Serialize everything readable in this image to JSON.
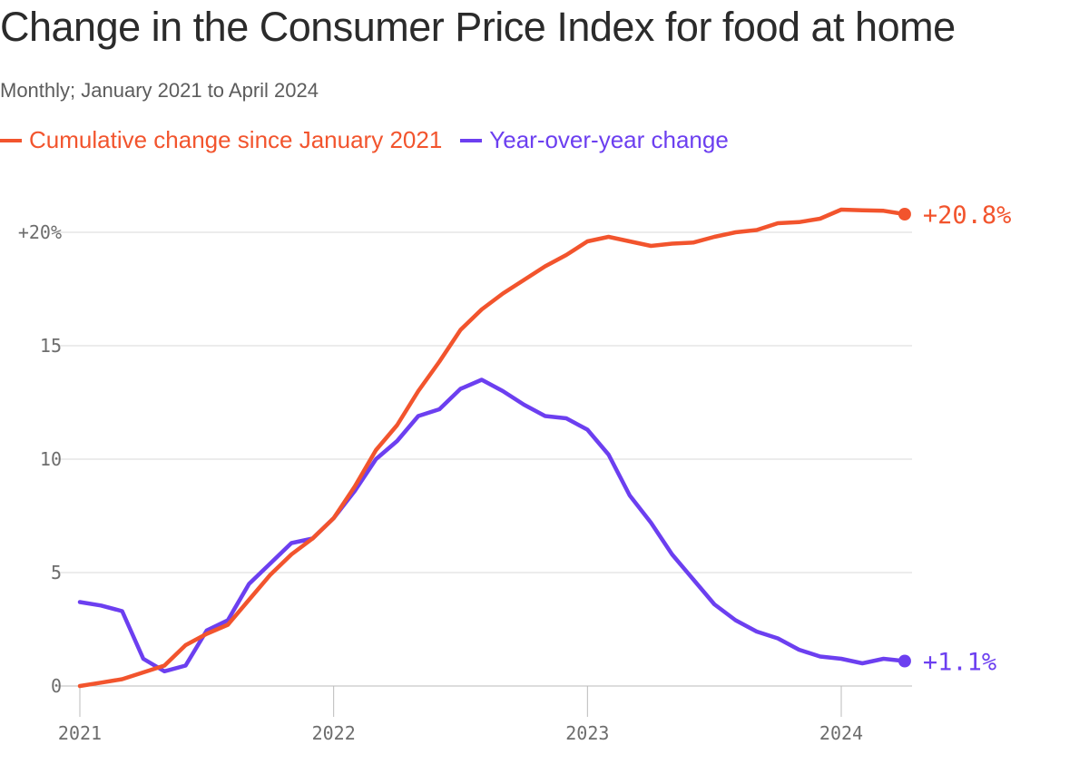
{
  "title": "Change in the Consumer Price Index for food at home",
  "subtitle": "Monthly; January 2021 to April 2024",
  "colors": {
    "cumulative": "#f2542d",
    "yoy": "#6c3ff0",
    "grid": "#d9d9d9",
    "axis": "#bbbbbb"
  },
  "chart_data": {
    "type": "line",
    "x_start": "2021-01",
    "x_end": "2024-04",
    "x": [
      "2021-01",
      "2021-02",
      "2021-03",
      "2021-04",
      "2021-05",
      "2021-06",
      "2021-07",
      "2021-08",
      "2021-09",
      "2021-10",
      "2021-11",
      "2021-12",
      "2022-01",
      "2022-02",
      "2022-03",
      "2022-04",
      "2022-05",
      "2022-06",
      "2022-07",
      "2022-08",
      "2022-09",
      "2022-10",
      "2022-11",
      "2022-12",
      "2023-01",
      "2023-02",
      "2023-03",
      "2023-04",
      "2023-05",
      "2023-06",
      "2023-07",
      "2023-08",
      "2023-09",
      "2023-10",
      "2023-11",
      "2023-12",
      "2024-01",
      "2024-02",
      "2024-03",
      "2024-04"
    ],
    "ylim": [
      0,
      20
    ],
    "yticks": [
      {
        "value": 20,
        "label": "+20%"
      },
      {
        "value": 15,
        "label": "15"
      },
      {
        "value": 10,
        "label": "10"
      },
      {
        "value": 5,
        "label": "5"
      },
      {
        "value": 0,
        "label": "0"
      }
    ],
    "xticks": [
      {
        "value": "2021-01",
        "label": "2021"
      },
      {
        "value": "2022-01",
        "label": "2022"
      },
      {
        "value": "2023-01",
        "label": "2023"
      },
      {
        "value": "2024-01",
        "label": "2024"
      }
    ],
    "grid": true,
    "series": [
      {
        "name": "Cumulative change since January 2021",
        "color": "#f2542d",
        "end_label": "+20.8%",
        "values": [
          0,
          0.15,
          0.3,
          0.6,
          0.9,
          1.8,
          2.3,
          2.7,
          3.8,
          4.9,
          5.8,
          6.5,
          7.4,
          8.8,
          10.4,
          11.5,
          13.0,
          14.3,
          15.7,
          16.6,
          17.3,
          17.9,
          18.5,
          19.0,
          19.6,
          19.8,
          19.6,
          19.4,
          19.5,
          19.55,
          19.8,
          20.0,
          20.1,
          20.4,
          20.45,
          20.6,
          21.0,
          20.97,
          20.95,
          20.8
        ]
      },
      {
        "name": "Year-over-year change",
        "color": "#6c3ff0",
        "end_label": "+1.1%",
        "values": [
          3.7,
          3.55,
          3.3,
          1.2,
          0.65,
          0.9,
          2.45,
          2.9,
          4.5,
          5.4,
          6.3,
          6.5,
          7.4,
          8.6,
          10.0,
          10.8,
          11.9,
          12.2,
          13.1,
          13.5,
          13.0,
          12.4,
          11.9,
          11.8,
          11.3,
          10.2,
          8.4,
          7.2,
          5.8,
          4.7,
          3.6,
          2.9,
          2.4,
          2.1,
          1.6,
          1.3,
          1.2,
          1.0,
          1.2,
          1.1
        ]
      }
    ]
  }
}
